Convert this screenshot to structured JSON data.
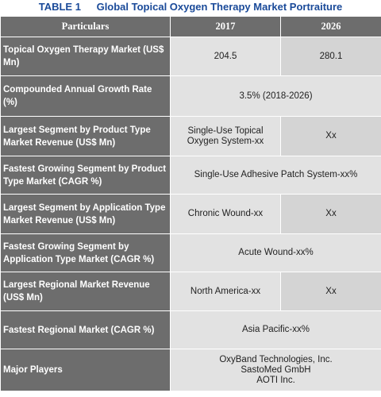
{
  "table": {
    "number": "TABLE 1",
    "title": "Global Topical Oxygen Therapy Market Portraiture",
    "headers": [
      "Particulars",
      "2017",
      "2026"
    ],
    "rows": [
      {
        "label": "Topical Oxygen Therapy Market (US$ Mn)",
        "v2017": "204.5",
        "v2026": "280.1"
      },
      {
        "label": "Compounded Annual Growth Rate (%)",
        "value": "3.5% (2018-2026)"
      },
      {
        "label": "Largest Segment by Product Type Market Revenue (US$ Mn)",
        "v2017": "Single-Use Topical Oxygen System-xx",
        "v2026": "Xx"
      },
      {
        "label": "Fastest Growing Segment by Product Type Market (CAGR %)",
        "value": "Single-Use Adhesive Patch System-xx%"
      },
      {
        "label": "Largest Segment by Application Type Market Revenue (US$ Mn)",
        "v2017": "Chronic Wound-xx",
        "v2026": "Xx"
      },
      {
        "label": "Fastest Growing Segment by Application Type Market (CAGR %)",
        "value": "Acute Wound-xx%"
      },
      {
        "label": "Largest Regional Market Revenue (US$ Mn)",
        "v2017": "North America-xx",
        "v2026": "Xx"
      },
      {
        "label": "Fastest Regional Market (CAGR %)",
        "value": "Asia Pacific-xx%"
      },
      {
        "label": "Major Players",
        "players": [
          "OxyBand Technologies, Inc.",
          "SastoMed GmbH",
          "AOTI Inc."
        ]
      }
    ]
  }
}
